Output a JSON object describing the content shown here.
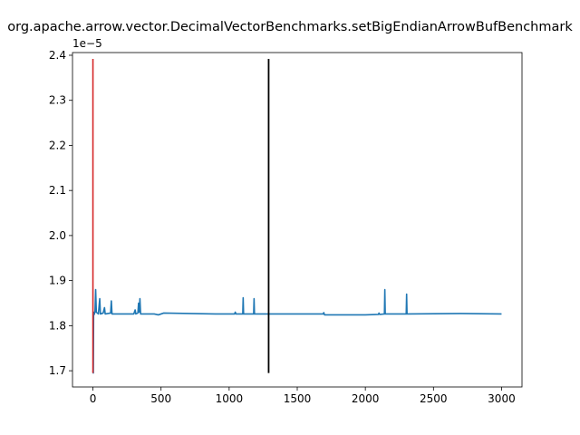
{
  "chart_data": {
    "type": "line",
    "title": "org.apache.arrow.vector.DecimalVectorBenchmarks.setBigEndianArrowBufBenchmark",
    "xlabel": "",
    "ylabel": "",
    "y_offset_label": "1e−5",
    "xlim": [
      -150,
      3150
    ],
    "ylim": [
      1.664e-05,
      2.406e-05
    ],
    "x_ticks": [
      0,
      500,
      1000,
      1500,
      2000,
      2500,
      3000
    ],
    "x_tick_labels": [
      "0",
      "500",
      "1000",
      "1500",
      "2000",
      "2500",
      "3000"
    ],
    "y_ticks": [
      1.7e-05,
      1.8e-05,
      1.9e-05,
      2e-05,
      2.1e-05,
      2.2e-05,
      2.3e-05,
      2.4e-05
    ],
    "y_tick_labels": [
      "1.7",
      "1.8",
      "1.9",
      "2.0",
      "2.1",
      "2.2",
      "2.3",
      "2.4"
    ],
    "grid": false,
    "series": [
      {
        "color": "#1f77b4",
        "points": [
          [
            0,
            1.7e-05
          ],
          [
            3,
            1.695e-05
          ],
          [
            5,
            1.83e-05
          ],
          [
            10,
            1.825e-05
          ],
          [
            15,
            1.83e-05
          ],
          [
            20,
            1.88e-05
          ],
          [
            25,
            1.83e-05
          ],
          [
            40,
            1.826e-05
          ],
          [
            50,
            1.86e-05
          ],
          [
            55,
            1.826e-05
          ],
          [
            75,
            1.828e-05
          ],
          [
            85,
            1.84e-05
          ],
          [
            90,
            1.826e-05
          ],
          [
            130,
            1.828e-05
          ],
          [
            135,
            1.855e-05
          ],
          [
            140,
            1.826e-05
          ],
          [
            300,
            1.826e-05
          ],
          [
            310,
            1.835e-05
          ],
          [
            315,
            1.826e-05
          ],
          [
            330,
            1.828e-05
          ],
          [
            335,
            1.85e-05
          ],
          [
            340,
            1.83e-05
          ],
          [
            345,
            1.86e-05
          ],
          [
            350,
            1.826e-05
          ],
          [
            450,
            1.826e-05
          ],
          [
            480,
            1.824e-05
          ],
          [
            520,
            1.828e-05
          ],
          [
            900,
            1.826e-05
          ],
          [
            1040,
            1.826e-05
          ],
          [
            1045,
            1.83e-05
          ],
          [
            1050,
            1.826e-05
          ],
          [
            1100,
            1.826e-05
          ],
          [
            1103,
            1.862e-05
          ],
          [
            1106,
            1.826e-05
          ],
          [
            1180,
            1.826e-05
          ],
          [
            1183,
            1.86e-05
          ],
          [
            1186,
            1.826e-05
          ],
          [
            1500,
            1.826e-05
          ],
          [
            1690,
            1.826e-05
          ],
          [
            1695,
            1.829e-05
          ],
          [
            1700,
            1.824e-05
          ],
          [
            2000,
            1.824e-05
          ],
          [
            2095,
            1.825e-05
          ],
          [
            2100,
            1.828e-05
          ],
          [
            2105,
            1.825e-05
          ],
          [
            2140,
            1.826e-05
          ],
          [
            2143,
            1.88e-05
          ],
          [
            2146,
            1.826e-05
          ],
          [
            2300,
            1.826e-05
          ],
          [
            2303,
            1.87e-05
          ],
          [
            2306,
            1.826e-05
          ],
          [
            2700,
            1.827e-05
          ],
          [
            3000,
            1.826e-05
          ]
        ]
      },
      {
        "color": "#d62728",
        "points": [
          [
            0,
            2.392e-05
          ],
          [
            0,
            1.695e-05
          ]
        ]
      }
    ],
    "vertical_line": {
      "x": 1290,
      "y_range": [
        1.695e-05,
        2.392e-05
      ],
      "color": "#000000"
    }
  }
}
